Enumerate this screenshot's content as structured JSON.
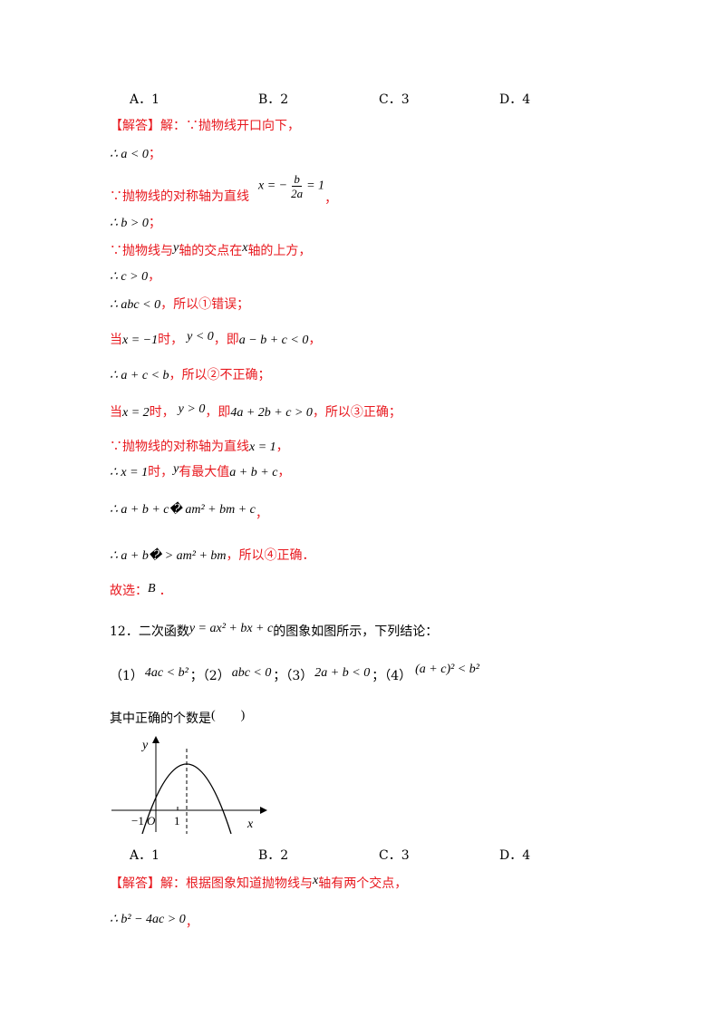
{
  "options_top": [
    "A．1",
    "B．2",
    "C．3",
    "D．4"
  ],
  "sol1": {
    "l1_tag": "【解答】",
    "l1_text": "解：∵抛物线开口向下，",
    "l2_math": "∴ a < 0",
    "l2_punct": "；",
    "l3_text": "∵抛物线的对称轴为直线",
    "l3_lhs": "x = −",
    "l3_num": "b",
    "l3_den": "2a",
    "l3_rhs": "= 1",
    "l3_punct": "，",
    "l4_math": "∴ b > 0",
    "l4_punct": "；",
    "l5_a": "∵抛物线与",
    "l5_y": "y",
    "l5_b": "轴的交点在",
    "l5_x": "x",
    "l5_c": "轴的上方，",
    "l6_math": "∴ c > 0",
    "l6_punct": "，",
    "l7_math": "∴ abc < 0",
    "l7_text": "，所以①错误；",
    "l8_a": "当",
    "l8_m1": "x = −1",
    "l8_b": "时，",
    "l8_m2": "y < 0",
    "l8_c": "，即",
    "l8_m3": "a − b + c < 0",
    "l8_d": "，",
    "l9_math": "∴ a + c < b",
    "l9_text": "，所以②不正确；",
    "l10_a": "当",
    "l10_m1": "x = 2",
    "l10_b": "时，",
    "l10_m2": "y > 0",
    "l10_c": "，即",
    "l10_m3": "4a + 2b + c > 0",
    "l10_d": "，所以③正确；",
    "l11_text": "∵抛物线的对称轴为直线",
    "l11_math": "x = 1",
    "l11_punct": "，",
    "l12_math": "∴ x = 1",
    "l12_a": "时，",
    "l12_y": "y",
    "l12_b": "有最大值",
    "l12_m": "a + b + c",
    "l12_punct": "，",
    "l13_math": "∴ a + b + c� am² + bm + c",
    "l13_punct": "，",
    "l14_math": "∴ a + b� > am² + bm",
    "l14_text": "，所以④正确．",
    "l15_text": "故选：",
    "l15_math": "B",
    "l15_punct": "．"
  },
  "q12": {
    "stem_a": "12．二次函数",
    "stem_m": "y = ax² + bx + c",
    "stem_b": "的图象如图所示，下列结论：",
    "c1_label": "（1）",
    "c1_math": "4ac < b²",
    "c1_sep": "；",
    "c2_label": "（2）",
    "c2_math": "abc < 0",
    "c2_sep": "；",
    "c3_label": "（3）",
    "c3_math": "2a + b < 0",
    "c3_sep": "；",
    "c4_label": "（4）",
    "c4_math": "(a + c)² < b²",
    "ask": "其中正确的个数是",
    "paren": "(　　)",
    "graph": {
      "y_label": "y",
      "x_label": "x",
      "tick_neg1": "−1",
      "origin": "O",
      "tick_1": "1"
    },
    "options": [
      "A．1",
      "B．2",
      "C．3",
      "D．4"
    ]
  },
  "sol2": {
    "l1_tag": "【解答】",
    "l1_a": "解：根据图象知道抛物线与",
    "l1_x": "x",
    "l1_b": "轴有两个交点，",
    "l2_math": "∴ b² − 4ac > 0",
    "l2_punct": "，"
  }
}
